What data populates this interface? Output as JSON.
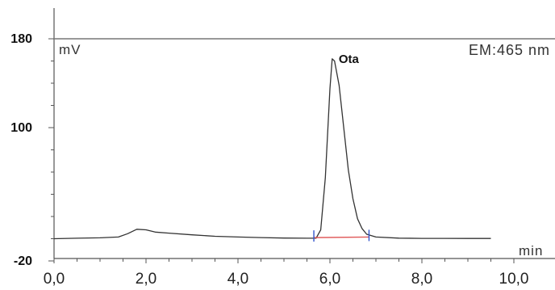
{
  "chart_data": {
    "type": "line",
    "title": "",
    "xlabel": "min",
    "ylabel": "mV",
    "detector_label": "EM:465 nm",
    "xlim": [
      0,
      10.0
    ],
    "ylim": [
      -20,
      180
    ],
    "x_ticks": [
      0,
      2,
      4,
      6,
      8,
      10
    ],
    "x_tick_labels": [
      "0,0",
      "2,0",
      "4,0",
      "6,0",
      "8,0",
      "10,0"
    ],
    "y_ticks": [
      -20,
      100,
      180
    ],
    "y_tick_labels": [
      "-20",
      "100",
      "180"
    ],
    "series": [
      {
        "name": "",
        "x": [
          0.0,
          0.5,
          1.0,
          1.4,
          1.6,
          1.8,
          2.0,
          2.2,
          2.5,
          3.0,
          3.5,
          4.0,
          4.5,
          5.0,
          5.5,
          5.7,
          5.8,
          5.9,
          6.0,
          6.05,
          6.1,
          6.2,
          6.3,
          6.4,
          6.5,
          6.6,
          6.7,
          6.8,
          7.0,
          7.5,
          8.0,
          8.5,
          9.0,
          9.5
        ],
        "y": [
          0,
          0.4,
          0.8,
          1.5,
          4.5,
          8.5,
          8,
          6,
          5,
          3.5,
          2.2,
          1.5,
          1,
          0.6,
          0.4,
          0.5,
          8,
          55,
          135,
          162,
          160,
          138,
          100,
          62,
          36,
          18,
          9,
          4,
          1.5,
          0.5,
          0.3,
          0.3,
          0.2,
          0.2
        ]
      }
    ],
    "peaks": [
      {
        "label": "Ota",
        "retention_time": 6.05,
        "height": 162
      }
    ],
    "integration_baseline": {
      "x": [
        5.65,
        6.85
      ],
      "y": [
        1.0,
        1.5
      ]
    },
    "grid": false,
    "colors": {
      "trace": "#333333",
      "baseline": "#e05a5a",
      "markers": "#3355cc",
      "axis": "#555555"
    }
  }
}
